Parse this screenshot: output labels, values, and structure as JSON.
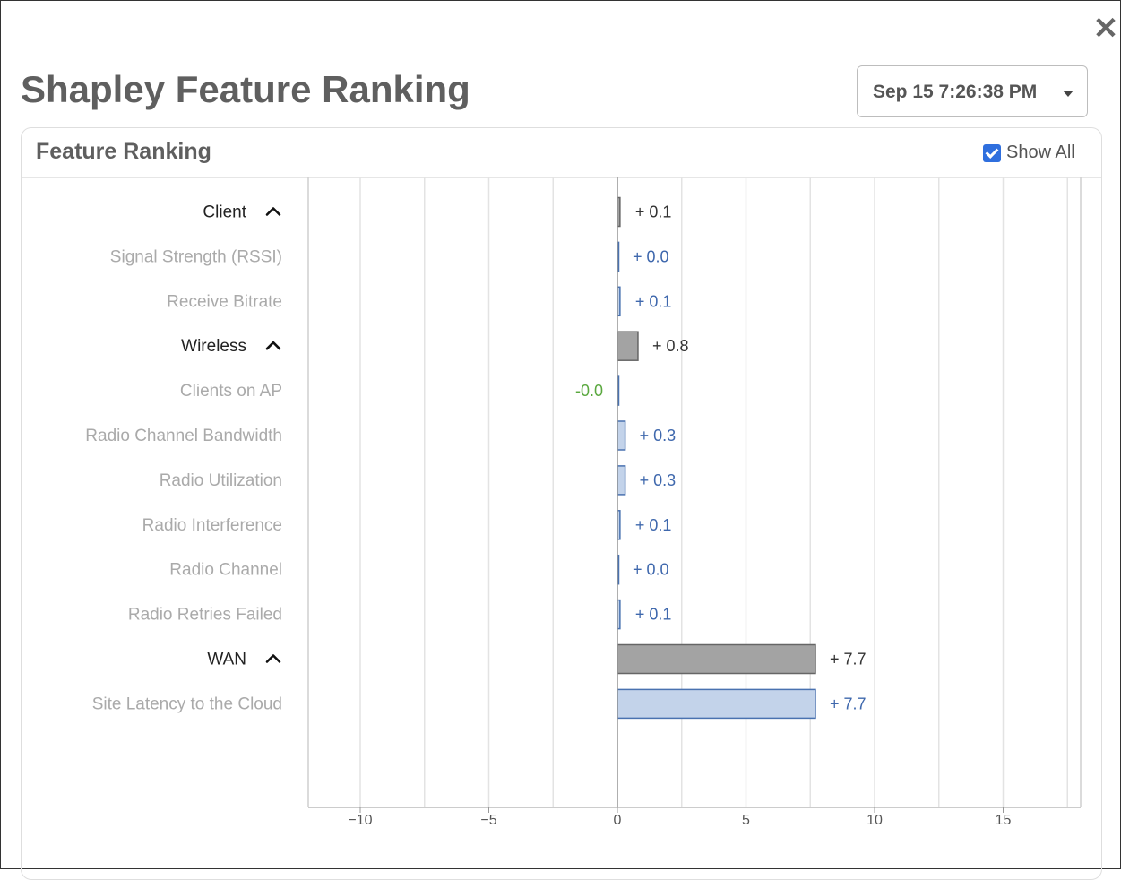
{
  "header": {
    "title": "Shapley Feature Ranking",
    "close_icon": "close-icon",
    "time_select": {
      "value": "Sep 15 7:26:38 PM",
      "icon": "caret-down-icon"
    }
  },
  "card": {
    "title": "Feature Ranking",
    "show_all": {
      "label": "Show All",
      "checked": true
    }
  },
  "colors": {
    "group_bar_fill": "#a3a3a3",
    "group_bar_stroke": "#666666",
    "feature_bar_fill": "#c3d3ea",
    "feature_bar_stroke": "#4a72b0",
    "group_label": "#333333",
    "feature_label": "#3f68ad",
    "negative_label": "#5aa83f"
  },
  "chart_data": {
    "type": "bar",
    "orientation": "horizontal",
    "xlim": [
      -12,
      18
    ],
    "x_ticks": [
      -10,
      -5,
      0,
      5,
      10,
      15
    ],
    "x_tick_labels": [
      "−10",
      "−5",
      "0",
      "5",
      "10",
      "15"
    ],
    "grid": true,
    "rows": [
      {
        "label": "Client",
        "kind": "group",
        "value": 0.1,
        "value_label": "+ 0.1"
      },
      {
        "label": "Signal Strength (RSSI)",
        "kind": "feature",
        "value": 0.0,
        "value_label": "+ 0.0"
      },
      {
        "label": "Receive Bitrate",
        "kind": "feature",
        "value": 0.1,
        "value_label": "+ 0.1"
      },
      {
        "label": "Wireless",
        "kind": "group",
        "value": 0.8,
        "value_label": "+ 0.8"
      },
      {
        "label": "Clients on AP",
        "kind": "feature",
        "value": -0.0,
        "value_label": "-0.0"
      },
      {
        "label": "Radio Channel Bandwidth",
        "kind": "feature",
        "value": 0.3,
        "value_label": "+ 0.3"
      },
      {
        "label": "Radio Utilization",
        "kind": "feature",
        "value": 0.3,
        "value_label": "+ 0.3"
      },
      {
        "label": "Radio Interference",
        "kind": "feature",
        "value": 0.1,
        "value_label": "+ 0.1"
      },
      {
        "label": "Radio Channel",
        "kind": "feature",
        "value": 0.0,
        "value_label": "+ 0.0"
      },
      {
        "label": "Radio Retries Failed",
        "kind": "feature",
        "value": 0.1,
        "value_label": "+ 0.1"
      },
      {
        "label": "WAN",
        "kind": "group",
        "value": 7.7,
        "value_label": "+ 7.7"
      },
      {
        "label": "Site Latency to the Cloud",
        "kind": "feature",
        "value": 7.7,
        "value_label": "+ 7.7"
      }
    ]
  }
}
